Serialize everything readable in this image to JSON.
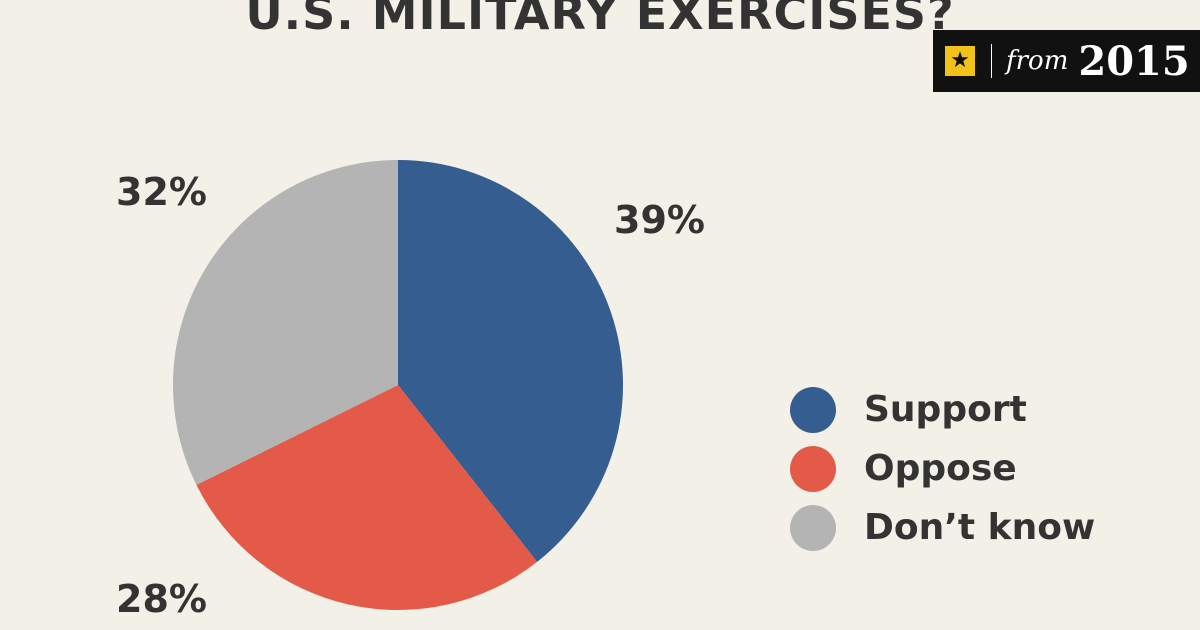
{
  "title": "U.S. MILITARY EXERCISES?",
  "badge": {
    "icon": "star-icon",
    "from_label": "from",
    "year": "2015"
  },
  "chart_data": {
    "type": "pie",
    "slices": [
      {
        "label": "Support",
        "value": 39,
        "value_label": "39%",
        "color": "#355d90"
      },
      {
        "label": "Oppose",
        "value": 28,
        "value_label": "28%",
        "color": "#e35b48"
      },
      {
        "label": "Don’t know",
        "value": 32,
        "value_label": "32%",
        "color": "#b4b4b4"
      }
    ],
    "legend_position": "right"
  }
}
